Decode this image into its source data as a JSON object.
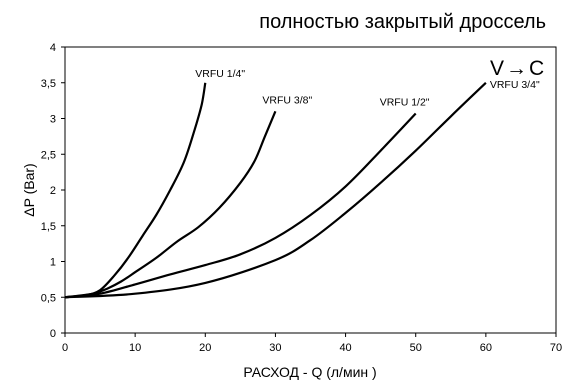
{
  "chart_data": {
    "type": "line",
    "title": "полностью закрытый дроссель",
    "xlabel": "РАСХОД - Q (л/мин )",
    "ylabel": "ΔP (Bar)",
    "xlim": [
      0,
      70
    ],
    "ylim": [
      0,
      4
    ],
    "x_ticks": [
      "0",
      "10",
      "20",
      "30",
      "40",
      "50",
      "60",
      "70"
    ],
    "y_ticks": [
      "0",
      "0,5",
      "1",
      "1,5",
      "2",
      "2,5",
      "3",
      "3,5",
      "4"
    ],
    "grid": false,
    "annotation": "V→C",
    "series": [
      {
        "name": "VRFU 1/4\"",
        "points": [
          [
            0,
            0.5
          ],
          [
            3,
            0.53
          ],
          [
            5,
            0.6
          ],
          [
            7,
            0.8
          ],
          [
            9,
            1.05
          ],
          [
            11,
            1.35
          ],
          [
            13,
            1.65
          ],
          [
            15,
            2.0
          ],
          [
            17,
            2.4
          ],
          [
            18.5,
            2.85
          ],
          [
            19.5,
            3.2
          ],
          [
            20,
            3.5
          ]
        ]
      },
      {
        "name": "VRFU 3/8\"",
        "points": [
          [
            0,
            0.5
          ],
          [
            4,
            0.55
          ],
          [
            6,
            0.62
          ],
          [
            8,
            0.72
          ],
          [
            10,
            0.85
          ],
          [
            13,
            1.05
          ],
          [
            16,
            1.28
          ],
          [
            19,
            1.48
          ],
          [
            22,
            1.75
          ],
          [
            25,
            2.1
          ],
          [
            27,
            2.4
          ],
          [
            28.5,
            2.75
          ],
          [
            30,
            3.1
          ]
        ]
      },
      {
        "name": "VRFU 1/2\"",
        "points": [
          [
            0,
            0.5
          ],
          [
            5,
            0.55
          ],
          [
            10,
            0.68
          ],
          [
            15,
            0.82
          ],
          [
            20,
            0.95
          ],
          [
            25,
            1.1
          ],
          [
            30,
            1.33
          ],
          [
            35,
            1.65
          ],
          [
            40,
            2.05
          ],
          [
            45,
            2.55
          ],
          [
            50,
            3.07
          ]
        ]
      },
      {
        "name": "VRFU 3/4\"",
        "points": [
          [
            0,
            0.5
          ],
          [
            10,
            0.55
          ],
          [
            20,
            0.7
          ],
          [
            30,
            1.02
          ],
          [
            35,
            1.3
          ],
          [
            40,
            1.68
          ],
          [
            45,
            2.1
          ],
          [
            50,
            2.55
          ],
          [
            55,
            3.03
          ],
          [
            60,
            3.5
          ]
        ]
      }
    ]
  }
}
